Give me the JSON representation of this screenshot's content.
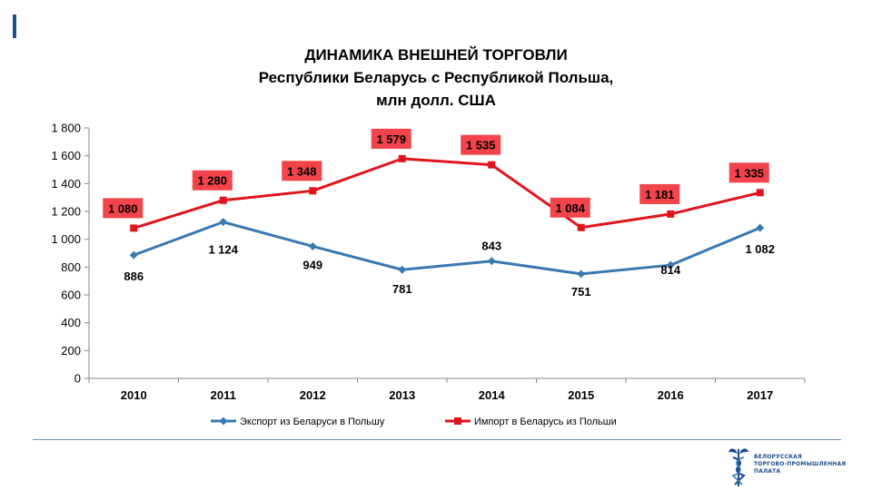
{
  "slide": {
    "accent_color": "#1f4e8c",
    "title_line1": "ДИНАМИКА  ВНЕШНЕЙ  ТОРГОВЛИ",
    "title_line2": "Республики Беларусь с Республикой Польша,",
    "title_line3": "млн долл. США"
  },
  "logo": {
    "icon": "caduceus-icon",
    "line1": "БЕЛОРУССКАЯ",
    "line2": "ТОРГОВО-ПРОМЫШЛЕННАЯ",
    "line3": "ПАЛАТА"
  },
  "chart_data": {
    "type": "line",
    "categories": [
      "2010",
      "2011",
      "2012",
      "2013",
      "2014",
      "2015",
      "2016",
      "2017"
    ],
    "ylim": [
      0,
      1800
    ],
    "yticks": [
      0,
      200,
      400,
      600,
      800,
      1000,
      1200,
      1400,
      1600,
      1800
    ],
    "ytick_labels": [
      "0",
      "200",
      "400",
      "600",
      "800",
      "1 000",
      "1 200",
      "1 400",
      "1 600",
      "1 800"
    ],
    "legend_position": "bottom",
    "grid": false,
    "series": [
      {
        "name": "Экспорт из Беларуси в Польшу",
        "color": "#3a78b0",
        "marker": "diamond",
        "values": [
          886,
          1124,
          949,
          781,
          843,
          751,
          814,
          1082
        ],
        "labels": [
          "886",
          "1 124",
          "949",
          "781",
          "843",
          "751",
          "814",
          "1 082"
        ],
        "label_style": "plain"
      },
      {
        "name": "Импорт  в Беларусь из Польши",
        "color": "#e0141c",
        "marker": "square",
        "values": [
          1080,
          1280,
          1348,
          1579,
          1535,
          1084,
          1181,
          1335
        ],
        "labels": [
          "1 080",
          "1 280",
          "1 348",
          "1 579",
          "1 535",
          "1 084",
          "1 181",
          "1 335"
        ],
        "label_style": "boxed",
        "label_box_color": "#f2444a"
      }
    ]
  }
}
